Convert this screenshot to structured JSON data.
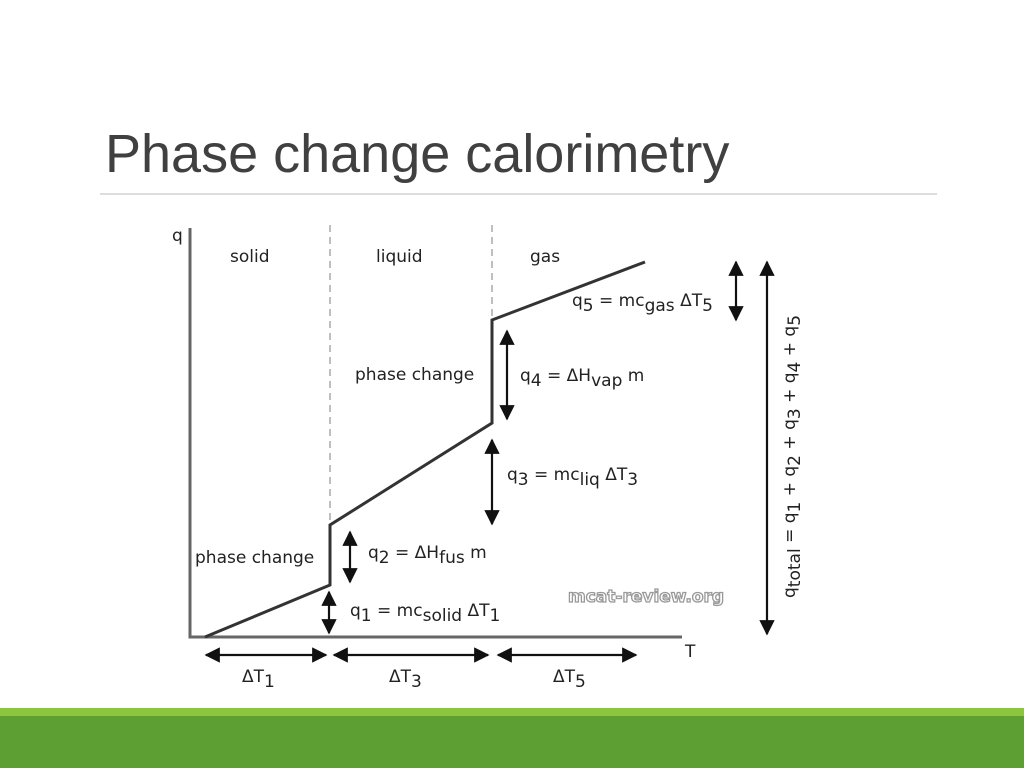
{
  "header": {
    "title": "Phase change calorimetry"
  },
  "diagram": {
    "y_axis": "q",
    "x_axis": "T",
    "regions": [
      "solid",
      "liquid",
      "gas"
    ],
    "phase_change_left": "phase change",
    "phase_change_right": "phase change",
    "equations": [
      [
        "q",
        "1",
        " = mc",
        "solid",
        " ΔT",
        "1"
      ],
      [
        "q",
        "2",
        " = ΔH",
        "fus",
        " m"
      ],
      [
        "q",
        "3",
        " = mc",
        "liq",
        " ΔT",
        "3"
      ],
      [
        "q",
        "4",
        " = ΔH",
        "vap",
        " m"
      ],
      [
        "q",
        "5",
        " = mc",
        "gas",
        " ΔT",
        "5"
      ]
    ],
    "total": [
      "q",
      "total",
      " = q",
      "1",
      " + q",
      "2",
      " + q",
      "3",
      " + q",
      "4",
      " + q",
      "5"
    ],
    "deltas": [
      [
        "ΔT",
        "1"
      ],
      [
        "ΔT",
        "3"
      ],
      [
        "ΔT",
        "5"
      ]
    ],
    "watermark": "mcat-review.org"
  }
}
